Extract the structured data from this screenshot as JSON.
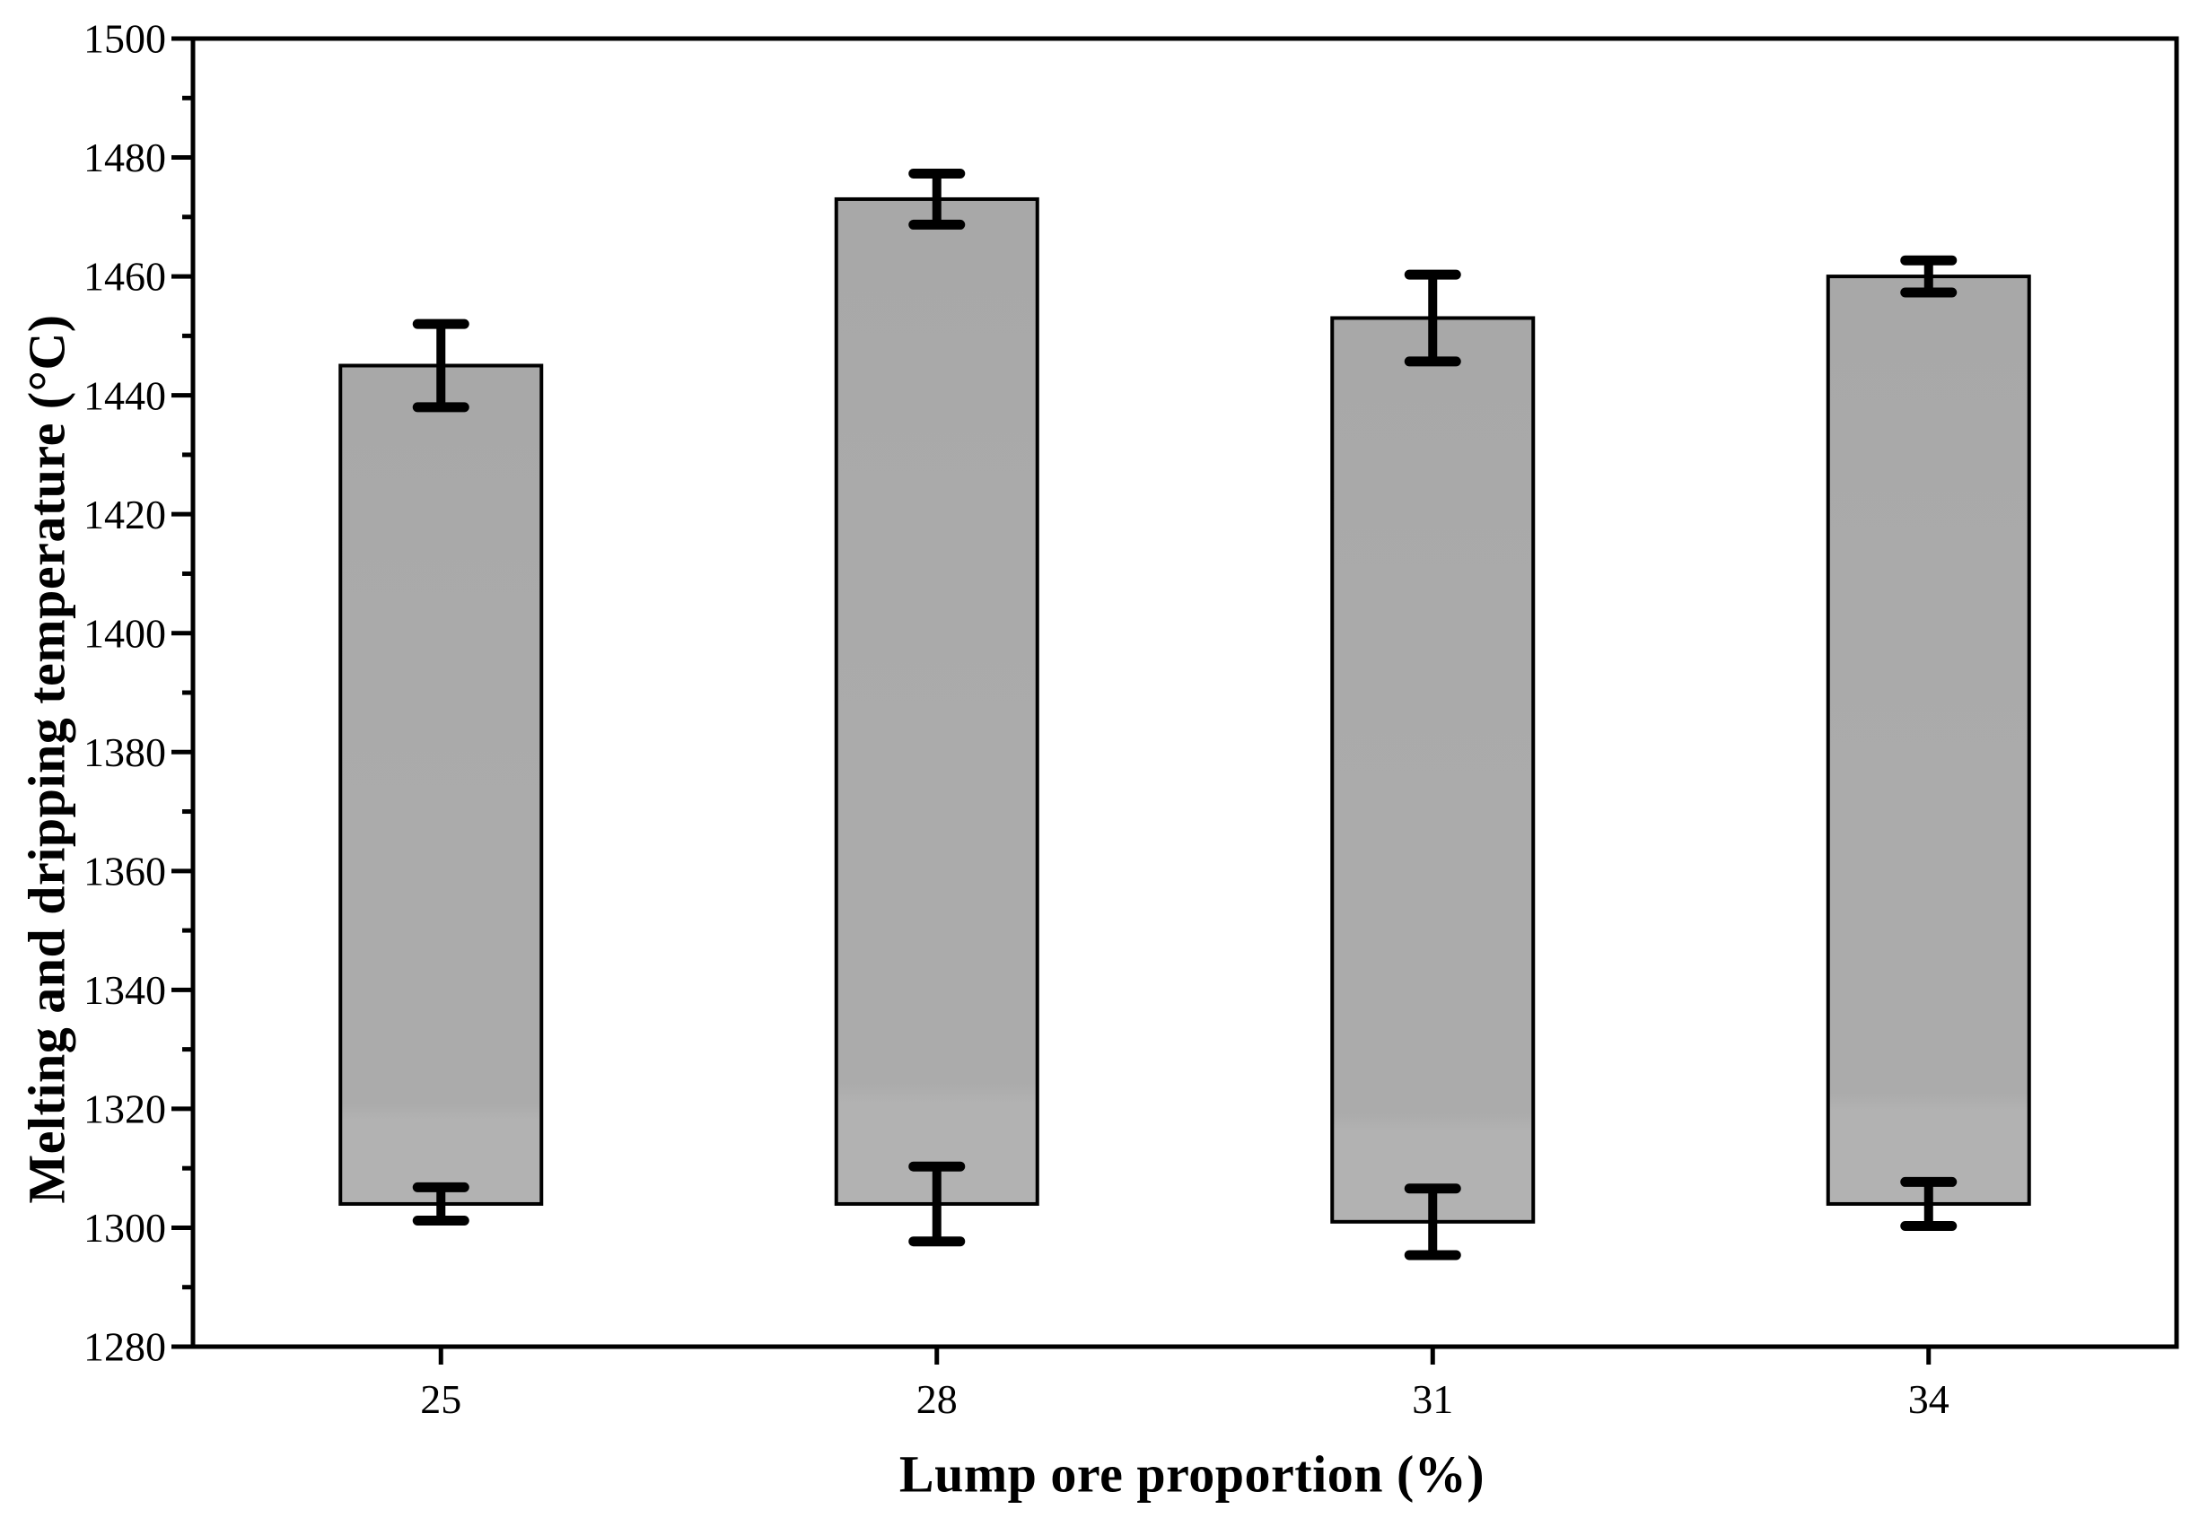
{
  "figure": {
    "background": "#ffffff"
  },
  "chart_data": {
    "type": "bar",
    "bar_style": "floating-range-bars-with-error-bars",
    "title": "",
    "xlabel": "Lump ore proportion (%)",
    "ylabel": "Melting and dripping temperature (°C)",
    "categories": [
      "25",
      "28",
      "31",
      "34"
    ],
    "ylim": [
      1280,
      1500
    ],
    "y_major_ticks": [
      1280,
      1300,
      1320,
      1340,
      1360,
      1380,
      1400,
      1420,
      1440,
      1460,
      1480,
      1500
    ],
    "y_minor_step": 10,
    "grid": false,
    "legend": null,
    "bar_fill_color": "#ababab",
    "bar_fill_color_top": "#a8a8a8",
    "bar_fill_color_bottom": "#b2b2b2",
    "bar_edge_color": "#000000",
    "error_bar_color": "#000000",
    "bars": [
      {
        "category": "25",
        "low": 1304,
        "high": 1445,
        "high_err": 7.0,
        "low_err": 2.8
      },
      {
        "category": "28",
        "low": 1304,
        "high": 1473,
        "high_err": 4.3,
        "low_err": 6.3
      },
      {
        "category": "31",
        "low": 1301,
        "high": 1453,
        "high_err": 7.3,
        "low_err": 5.6
      },
      {
        "category": "34",
        "low": 1304,
        "high": 1460,
        "high_err": 2.7,
        "low_err": 3.7
      }
    ]
  }
}
